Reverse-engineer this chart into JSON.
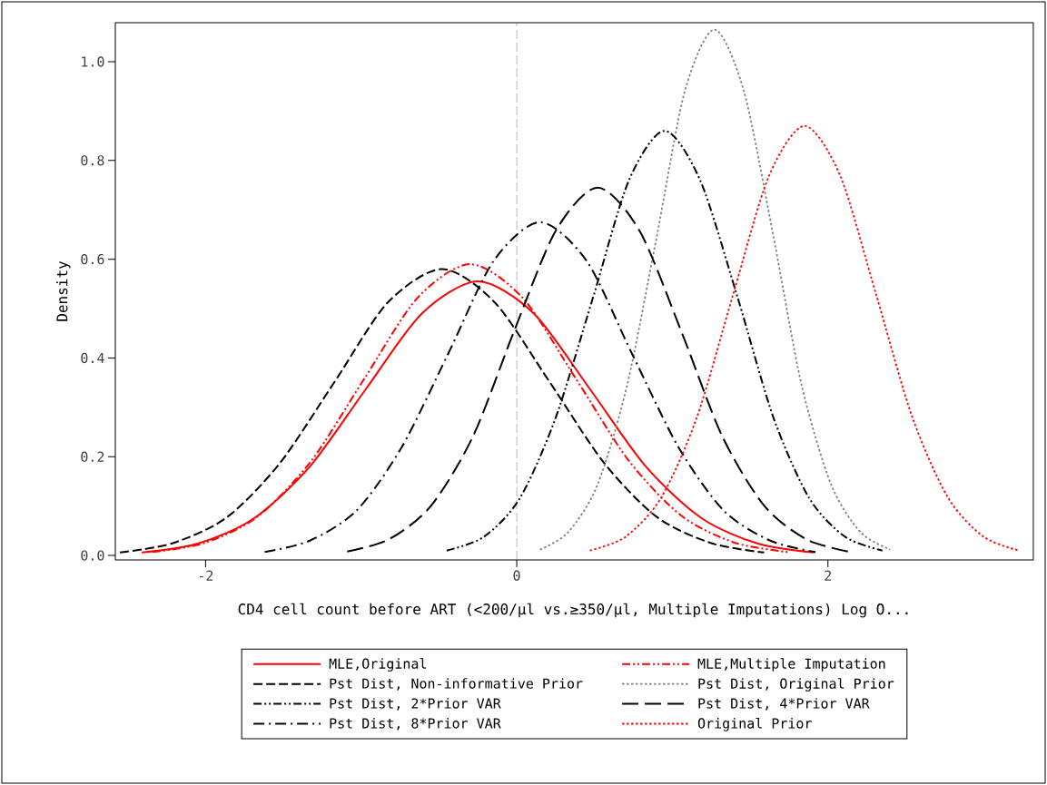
{
  "chart_data": {
    "type": "line",
    "xlabel": "CD4 cell count before ART (<200/μl vs.≥350/μl, Multiple Imputations) Log O...",
    "ylabel": "Density",
    "xlim": [
      -2.58,
      3.32
    ],
    "ylim": [
      -0.009,
      1.079
    ],
    "xticks": [
      -2,
      0,
      2
    ],
    "yticks": [
      {
        "value": 0,
        "label": "0.0"
      },
      {
        "value": 0.2,
        "label": "0.2"
      },
      {
        "value": 0.4,
        "label": "0.4"
      },
      {
        "value": 0.6,
        "label": "0.6"
      },
      {
        "value": 0.8,
        "label": "0.8"
      },
      {
        "value": 1.0,
        "label": "1.0"
      }
    ],
    "grid": false,
    "legend": "bottom",
    "ref_lines": [
      {
        "axis": "x",
        "value": 0,
        "color": "#808080",
        "line_style": "dashed"
      }
    ],
    "series": [
      {
        "name": "MLE,Original",
        "color": "#ff0000",
        "line_style": "solid",
        "x": [
          -2.41,
          -2.05,
          -1.69,
          -1.33,
          -0.97,
          -0.61,
          -0.25,
          0.11,
          0.47,
          0.83,
          1.19,
          1.55,
          1.91
        ],
        "values": [
          0.006,
          0.024,
          0.075,
          0.18,
          0.337,
          0.49,
          0.555,
          0.49,
          0.337,
          0.18,
          0.075,
          0.024,
          0.006
        ]
      },
      {
        "name": "MLE,Multiple Imputation",
        "color": "#ff0000",
        "line_style": "dashdotdot",
        "x": [
          -2.34,
          -2.0,
          -1.66,
          -1.32,
          -0.98,
          -0.64,
          -0.3,
          0.04,
          0.38,
          0.72,
          1.06,
          1.4,
          1.74
        ],
        "values": [
          0.007,
          0.026,
          0.08,
          0.192,
          0.358,
          0.521,
          0.59,
          0.521,
          0.358,
          0.192,
          0.08,
          0.026,
          0.007
        ]
      },
      {
        "name": "Pst Dist, Non-informative Prior",
        "color": "#000000",
        "line_style": "dashed",
        "x": [
          -2.55,
          -2.21,
          -1.86,
          -1.52,
          -1.17,
          -0.83,
          -0.48,
          -0.14,
          0.21,
          0.56,
          0.9,
          1.25,
          1.59
        ],
        "values": [
          0.006,
          0.025,
          0.078,
          0.188,
          0.352,
          0.512,
          0.58,
          0.512,
          0.352,
          0.188,
          0.078,
          0.025,
          0.006
        ]
      },
      {
        "name": "Pst Dist, Original Prior",
        "color": "#808080",
        "line_style": "dotted",
        "x": [
          0.15,
          0.33,
          0.52,
          0.71,
          0.9,
          1.08,
          1.27,
          1.46,
          1.65,
          1.83,
          2.02,
          2.21,
          2.4
        ],
        "values": [
          0.012,
          0.047,
          0.144,
          0.346,
          0.646,
          0.94,
          1.065,
          0.94,
          0.646,
          0.346,
          0.144,
          0.047,
          0.012
        ]
      },
      {
        "name": "Pst Dist, 2*Prior VAR",
        "color": "#000000",
        "line_style": "dashdotdot",
        "x": [
          -0.45,
          -0.21,
          0.02,
          0.25,
          0.49,
          0.72,
          0.95,
          1.18,
          1.42,
          1.65,
          1.88,
          2.11,
          2.35
        ],
        "values": [
          0.01,
          0.038,
          0.116,
          0.279,
          0.522,
          0.759,
          0.86,
          0.759,
          0.522,
          0.279,
          0.116,
          0.038,
          0.01
        ]
      },
      {
        "name": "Pst Dist, 4*Prior VAR",
        "color": "#000000",
        "line_style": "longdash",
        "x": [
          -1.09,
          -0.82,
          -0.55,
          -0.28,
          -0.02,
          0.25,
          0.52,
          0.79,
          1.06,
          1.32,
          1.59,
          1.86,
          2.13
        ],
        "values": [
          0.008,
          0.033,
          0.101,
          0.242,
          0.452,
          0.657,
          0.745,
          0.657,
          0.452,
          0.242,
          0.101,
          0.033,
          0.008
        ]
      },
      {
        "name": "Pst Dist, 8*Prior VAR",
        "color": "#000000",
        "line_style": "dashdot",
        "x": [
          -1.62,
          -1.33,
          -1.03,
          -0.74,
          -0.44,
          -0.15,
          0.15,
          0.45,
          0.74,
          1.04,
          1.33,
          1.63,
          1.92
        ],
        "values": [
          0.007,
          0.03,
          0.091,
          0.219,
          0.409,
          0.596,
          0.675,
          0.596,
          0.409,
          0.219,
          0.091,
          0.03,
          0.007
        ]
      },
      {
        "name": "Original Prior",
        "color": "#ff0000",
        "line_style": "dotted",
        "x": [
          0.47,
          0.7,
          0.93,
          1.16,
          1.39,
          1.62,
          1.85,
          2.08,
          2.31,
          2.54,
          2.77,
          3.0,
          3.23
        ],
        "values": [
          0.01,
          0.038,
          0.118,
          0.282,
          0.528,
          0.768,
          0.87,
          0.768,
          0.528,
          0.282,
          0.118,
          0.038,
          0.01
        ]
      }
    ]
  }
}
